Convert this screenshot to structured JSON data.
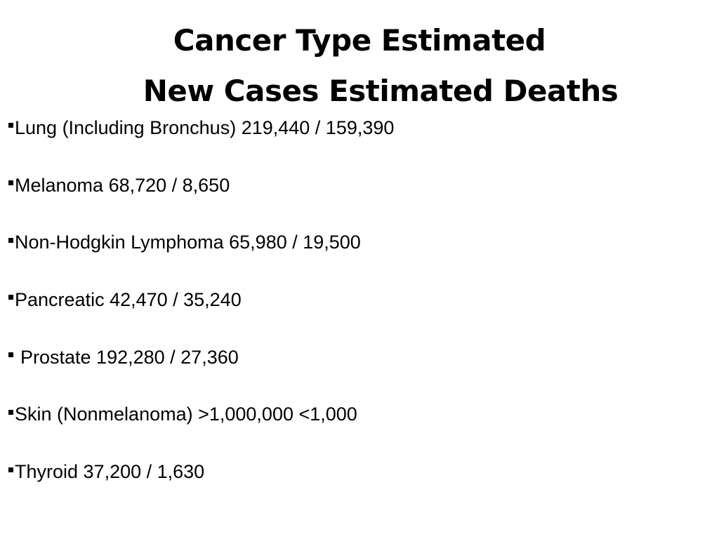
{
  "title": {
    "line1": "Cancer Type Estimated",
    "line2": "New Cases Estimated Deaths"
  },
  "items": [
    {
      "text": "Lung (Including Bronchus) 219,440 / 159,390"
    },
    {
      "text": "Melanoma 68,720 / 8,650"
    },
    {
      "text": "Non-Hodgkin Lymphoma 65,980 / 19,500"
    },
    {
      "text": "Pancreatic 42,470 / 35,240"
    },
    {
      "text": "Prostate 192,280 / 27,360"
    },
    {
      "text": "Skin (Nonmelanoma) >1,000,000 <1,000"
    },
    {
      "text": "Thyroid 37,200 / 1,630"
    }
  ]
}
